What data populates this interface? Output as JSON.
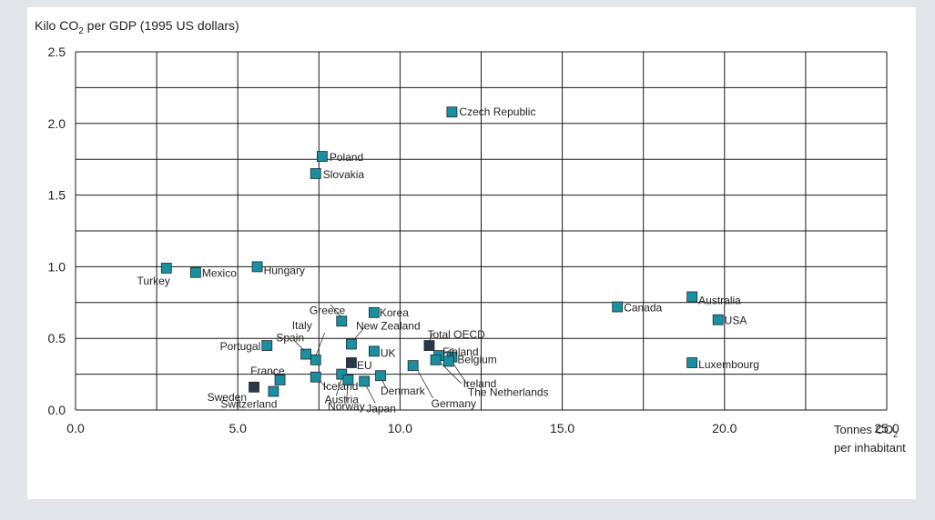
{
  "chart_data": {
    "type": "scatter",
    "title_main": "Kilo CO",
    "title_sub": "2",
    "title_rest": " per GDP (1995 US dollars)",
    "xlabel_line1_main": "Tonnes CO",
    "xlabel_line1_sub": "2",
    "xlabel_line2": "per inhabitant",
    "xlim": [
      0,
      25
    ],
    "ylim": [
      0,
      2.5
    ],
    "x_ticks": [
      "0.0",
      "5.0",
      "10.0",
      "15.0",
      "20.0",
      "25.0"
    ],
    "y_ticks": [
      "0.0",
      "0.5",
      "1.0",
      "1.5",
      "2.0",
      "2.5"
    ],
    "grid": true,
    "colors": {
      "country": "#1a8fa0",
      "aggregate": "#283845",
      "grid": "#1a1a1a"
    },
    "points": [
      {
        "label": "Czech Republic",
        "x": 11.6,
        "y": 2.08,
        "group": "country"
      },
      {
        "label": "Poland",
        "x": 7.6,
        "y": 1.77,
        "group": "country"
      },
      {
        "label": "Slovakia",
        "x": 7.4,
        "y": 1.65,
        "group": "country"
      },
      {
        "label": "Turkey",
        "x": 2.8,
        "y": 0.99,
        "group": "country"
      },
      {
        "label": "Mexico",
        "x": 3.7,
        "y": 0.96,
        "group": "country"
      },
      {
        "label": "Hungary",
        "x": 5.6,
        "y": 1.0,
        "group": "country"
      },
      {
        "label": "Korea",
        "x": 9.2,
        "y": 0.68,
        "group": "country"
      },
      {
        "label": "Greece",
        "x": 8.2,
        "y": 0.62,
        "group": "country"
      },
      {
        "label": "New Zealand",
        "x": 8.5,
        "y": 0.46,
        "group": "country"
      },
      {
        "label": "Italy",
        "x": 7.4,
        "y": 0.35,
        "group": "country"
      },
      {
        "label": "Spain",
        "x": 7.1,
        "y": 0.39,
        "group": "country"
      },
      {
        "label": "Portugal",
        "x": 5.9,
        "y": 0.45,
        "group": "country"
      },
      {
        "label": "UK",
        "x": 9.2,
        "y": 0.41,
        "group": "country"
      },
      {
        "label": "EU",
        "x": 8.5,
        "y": 0.33,
        "group": "aggregate"
      },
      {
        "label": "Total OECD",
        "x": 10.9,
        "y": 0.45,
        "group": "aggregate"
      },
      {
        "label": "Finland",
        "x": 11.2,
        "y": 0.38,
        "group": "country"
      },
      {
        "label": "Belgium",
        "x": 11.6,
        "y": 0.37,
        "group": "country"
      },
      {
        "label": "Ireland",
        "x": 11.1,
        "y": 0.35,
        "group": "country"
      },
      {
        "label": "France",
        "x": 6.3,
        "y": 0.21,
        "group": "country"
      },
      {
        "label": "Iceland",
        "x": 7.4,
        "y": 0.23,
        "group": "country"
      },
      {
        "label": "Denmark",
        "x": 9.4,
        "y": 0.24,
        "group": "country"
      },
      {
        "label": "Sweden",
        "x": 5.5,
        "y": 0.16,
        "group": "aggregate"
      },
      {
        "label": "Switzerland",
        "x": 6.1,
        "y": 0.13,
        "group": "country"
      },
      {
        "label": "Austria",
        "x": 8.2,
        "y": 0.25,
        "group": "country"
      },
      {
        "label": "Norway",
        "x": 8.4,
        "y": 0.21,
        "group": "country"
      },
      {
        "label": "Japan",
        "x": 8.9,
        "y": 0.2,
        "group": "country"
      },
      {
        "label": "Germany",
        "x": 10.4,
        "y": 0.31,
        "group": "country"
      },
      {
        "label": "The Netherlands",
        "x": 11.5,
        "y": 0.34,
        "group": "country"
      },
      {
        "label": "Canada",
        "x": 16.7,
        "y": 0.72,
        "group": "country"
      },
      {
        "label": "Australia",
        "x": 19.0,
        "y": 0.79,
        "group": "country"
      },
      {
        "label": "USA",
        "x": 19.8,
        "y": 0.63,
        "group": "country"
      },
      {
        "label": "Luxembourg",
        "x": 19.0,
        "y": 0.33,
        "group": "country"
      }
    ]
  }
}
